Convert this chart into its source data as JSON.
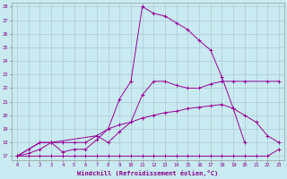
{
  "xlabel": "Windchill (Refroidissement éolien,°C)",
  "xlim": [
    -0.5,
    23.5
  ],
  "ylim": [
    16.7,
    28.3
  ],
  "yticks": [
    17,
    18,
    19,
    20,
    21,
    22,
    23,
    24,
    25,
    26,
    27,
    28
  ],
  "xticks": [
    0,
    1,
    2,
    3,
    4,
    5,
    6,
    7,
    8,
    9,
    10,
    11,
    12,
    13,
    14,
    15,
    16,
    17,
    18,
    19,
    20,
    21,
    22,
    23
  ],
  "bg_color": "#c8eaf0",
  "line_color": "#990099",
  "grid_color": "#a0b8cc",
  "lines": [
    {
      "x": [
        0,
        1,
        2,
        3,
        4,
        5,
        6,
        7,
        8,
        9,
        10,
        11,
        12,
        13,
        14,
        15,
        16,
        17,
        18,
        19,
        20
      ],
      "y": [
        17,
        17.5,
        18,
        18,
        17.3,
        17.5,
        17.5,
        18.2,
        19.0,
        21.2,
        22.5,
        28.0,
        27.5,
        27.3,
        26.8,
        26.3,
        25.5,
        24.8,
        22.8,
        20.5,
        18.0
      ]
    },
    {
      "x": [
        0,
        2,
        3,
        7,
        8,
        9,
        10,
        11,
        12,
        13,
        14,
        15,
        16,
        17,
        18,
        19,
        20,
        22,
        23
      ],
      "y": [
        17,
        18,
        18,
        18.5,
        18.0,
        18.8,
        19.5,
        21.5,
        22.5,
        22.5,
        22.2,
        22.0,
        22.0,
        22.3,
        22.5,
        22.5,
        22.5,
        22.5,
        22.5
      ]
    },
    {
      "x": [
        0,
        1,
        2,
        3,
        4,
        5,
        6,
        7,
        8,
        9,
        10,
        11,
        12,
        13,
        14,
        15,
        16,
        17,
        18,
        19,
        20,
        21,
        22,
        23
      ],
      "y": [
        17,
        17.2,
        17.5,
        18.0,
        18.0,
        18.0,
        18.0,
        18.5,
        19.0,
        19.3,
        19.5,
        19.8,
        20.0,
        20.2,
        20.3,
        20.5,
        20.6,
        20.7,
        20.8,
        20.5,
        20.0,
        19.5,
        18.5,
        18.0
      ]
    },
    {
      "x": [
        0,
        1,
        2,
        3,
        4,
        5,
        6,
        7,
        8,
        9,
        10,
        11,
        12,
        13,
        14,
        15,
        16,
        17,
        18,
        19,
        20,
        21,
        22,
        23
      ],
      "y": [
        17,
        17,
        17,
        17,
        17,
        17,
        17,
        17,
        17,
        17,
        17,
        17,
        17,
        17,
        17,
        17,
        17,
        17,
        17,
        17,
        17,
        17,
        17,
        17.5
      ]
    }
  ]
}
